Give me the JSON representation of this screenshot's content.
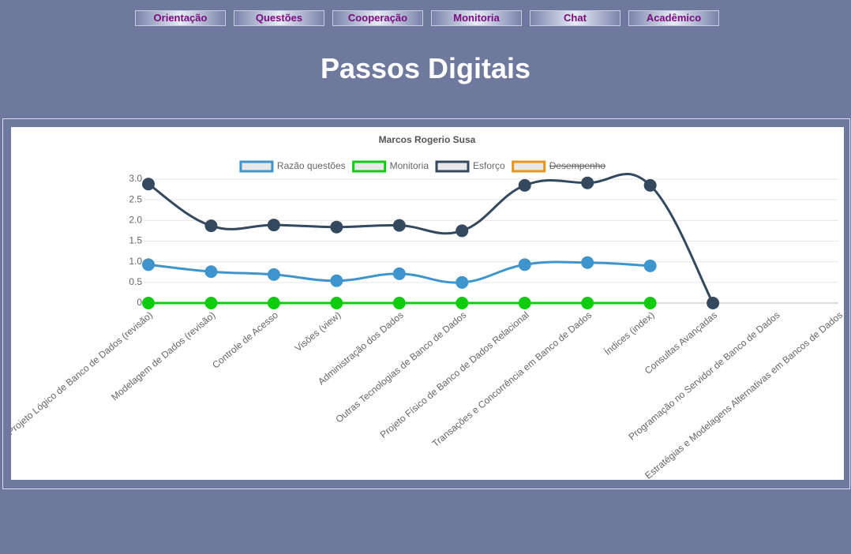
{
  "nav": [
    "Orientação",
    "Questões",
    "Cooperação",
    "Monitoria",
    "Chat",
    "Acadêmico"
  ],
  "header": {
    "title": "Passos Digitais"
  },
  "chart_data": {
    "type": "line",
    "title": "Marcos Rogerio Susa",
    "categories": [
      "Projeto Lógico de Banco de Dados (revisão)",
      "Modelagem de Dados (revisão)",
      "Controle de Acesso",
      "Visões (view)",
      "Administração dos Dados",
      "Outras Tecnologias de Banco de Dados",
      "Projeto Físico de Banco de Dados Relacional",
      "Transações e Concorrência em Banco de Dados",
      "Índices (index)",
      "Consultas Avançadas",
      "Programação no Servidor de Banco de Dados",
      "Estratégias e Modelagens Alternativas em Bancos de Dados"
    ],
    "series": [
      {
        "name": "Razão questões",
        "color": "#3e95cd",
        "values": [
          0.93,
          0.76,
          0.69,
          0.54,
          0.71,
          0.5,
          0.93,
          0.98,
          0.9,
          null,
          null,
          null
        ]
      },
      {
        "name": "Monitoria",
        "color": "#0fcc0f",
        "values": [
          0,
          0,
          0,
          0,
          0,
          0,
          0,
          0,
          0,
          null,
          null,
          null
        ]
      },
      {
        "name": "Esforço",
        "color": "#34495e",
        "values": [
          2.88,
          1.87,
          1.89,
          1.84,
          1.88,
          1.75,
          2.85,
          2.91,
          2.85,
          0,
          null,
          null
        ]
      },
      {
        "name": "Desempenho",
        "color": "#e8951a",
        "hidden": true,
        "values": [
          null,
          null,
          null,
          null,
          null,
          null,
          null,
          null,
          null,
          null,
          null,
          null
        ]
      }
    ],
    "ylim": [
      0,
      3
    ],
    "yticks": [
      0,
      0.5,
      {
        "value": 1,
        "label": "1.0"
      },
      1.5,
      {
        "value": 2,
        "label": "2.0"
      },
      2.5,
      {
        "value": 3,
        "label": "3.0"
      }
    ],
    "grid": true,
    "legend": "top"
  }
}
